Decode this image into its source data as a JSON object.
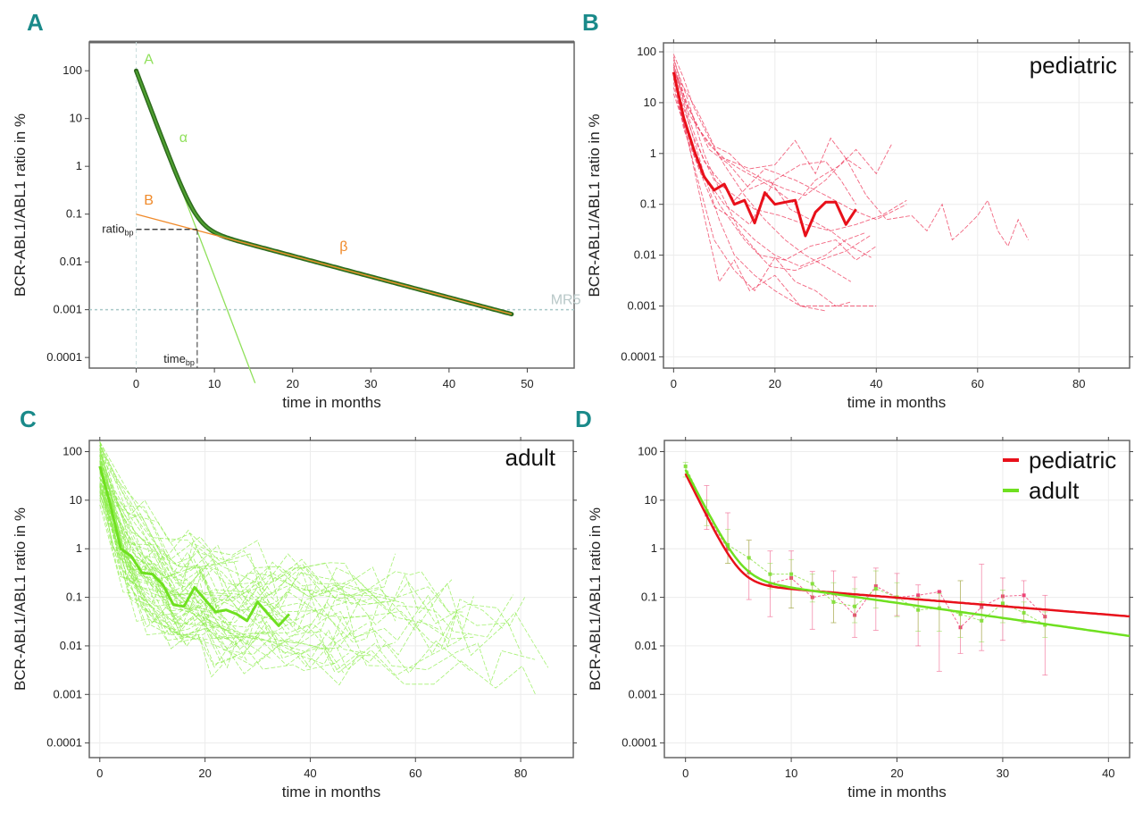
{
  "chart_data": [
    {
      "panel": "A",
      "type": "line",
      "title": "",
      "xlabel": "time in months",
      "ylabel": "BCR-ABL1/ABL1 ratio in %",
      "yscale": "log",
      "xlim": [
        -6,
        56
      ],
      "ylim": [
        6e-05,
        400
      ],
      "xticks": [
        0,
        10,
        20,
        30,
        40,
        50
      ],
      "yticks": [
        100,
        10,
        1,
        0.1,
        0.01,
        0.001,
        0.0001
      ],
      "ytick_labels": [
        "100",
        "10",
        "1",
        "0.1",
        "0.01",
        "0.001",
        "0.0001"
      ],
      "grid": false,
      "model": {
        "A": 100,
        "alpha_decades_per_month": -0.43,
        "B": 0.1,
        "beta_decades_per_month": -0.0436,
        "x_max": 48
      },
      "annotations": [
        {
          "text": "A",
          "x": 1,
          "y": 140,
          "color": "#8fe05a"
        },
        {
          "text": "α",
          "x": 5.5,
          "y": 3.2,
          "color": "#8fe05a"
        },
        {
          "text": "B",
          "x": 1,
          "y": 0.16,
          "color": "#f08a2a"
        },
        {
          "text": "β",
          "x": 26,
          "y": 0.017,
          "color": "#f08a2a"
        },
        {
          "text": "MR5",
          "x": 53,
          "y": 0.0013,
          "color": "#b8c8c8"
        }
      ],
      "ratio_bp_label": "ratio",
      "ratio_bp_sub": "bp",
      "time_bp_label": "time",
      "time_bp_sub": "bp",
      "breakpoint": {
        "x": 7.8,
        "y": 0.048
      },
      "mr5_level": 0.001
    },
    {
      "panel": "B",
      "type": "line",
      "inset_title": "pediatric",
      "xlabel": "time in months",
      "ylabel": "BCR-ABL1/ABL1 ratio in %",
      "yscale": "log",
      "xlim": [
        -2,
        90
      ],
      "ylim": [
        6e-05,
        150
      ],
      "xticks": [
        0,
        20,
        40,
        60,
        80
      ],
      "yticks": [
        100,
        10,
        1,
        0.1,
        0.01,
        0.001,
        0.0001
      ],
      "ytick_labels": [
        "100",
        "10",
        "1",
        "0.1",
        "0.01",
        "0.001",
        "0.0001"
      ],
      "grid": true,
      "color": "#ee3355",
      "median_color": "#e8101a",
      "median": {
        "x": [
          0,
          2,
          4,
          6,
          8,
          10,
          12,
          14,
          16,
          18,
          20,
          22,
          24,
          26,
          28,
          30,
          32,
          34,
          36
        ],
        "y": [
          40,
          5,
          1.2,
          0.35,
          0.19,
          0.25,
          0.1,
          0.12,
          0.043,
          0.17,
          0.1,
          0.11,
          0.12,
          0.024,
          0.07,
          0.11,
          0.11,
          0.04,
          0.08
        ]
      },
      "series": [
        {
          "x": [
            0,
            3,
            7,
            10,
            15,
            20,
            24,
            28,
            31,
            34,
            37
          ],
          "y": [
            80,
            6,
            1.5,
            0.8,
            0.5,
            0.6,
            1.8,
            0.4,
            2,
            0.8,
            0.5
          ]
        },
        {
          "x": [
            0,
            2,
            5,
            9,
            13,
            17,
            20,
            24,
            28,
            33,
            36,
            40,
            43
          ],
          "y": [
            60,
            12,
            3,
            0.9,
            0.5,
            0.3,
            0.2,
            0.1,
            0.3,
            0.6,
            1.2,
            0.4,
            1.5
          ]
        },
        {
          "x": [
            0,
            4,
            8,
            12,
            16,
            21,
            26,
            31,
            36,
            41,
            46
          ],
          "y": [
            30,
            2,
            0.3,
            0.15,
            0.08,
            0.06,
            0.04,
            0.03,
            0.04,
            0.06,
            0.12
          ]
        },
        {
          "x": [
            0,
            3,
            6,
            9,
            12,
            16,
            20,
            25,
            30,
            35,
            40
          ],
          "y": [
            50,
            4,
            0.4,
            0.05,
            0.01,
            0.004,
            0.002,
            0.001,
            0.001,
            0.001,
            0.001
          ]
        },
        {
          "x": [
            0,
            3,
            6,
            9,
            12,
            15,
            20,
            25,
            30
          ],
          "y": [
            20,
            1.5,
            0.06,
            0.003,
            0.008,
            0.002,
            0.004,
            0.001,
            0.0008
          ]
        },
        {
          "x": [
            0,
            2,
            5,
            8,
            11,
            14,
            18,
            22,
            26,
            30,
            34,
            38,
            42,
            47,
            50,
            53,
            55,
            57,
            60,
            62,
            64,
            66,
            68,
            70
          ],
          "y": [
            40,
            20,
            6,
            1.4,
            1,
            0.5,
            0.3,
            0.2,
            0.15,
            0.3,
            0.8,
            0.15,
            0.05,
            0.06,
            0.03,
            0.1,
            0.02,
            0.03,
            0.06,
            0.12,
            0.03,
            0.015,
            0.05,
            0.02
          ]
        },
        {
          "x": [
            0,
            3,
            6,
            9,
            13,
            17,
            22,
            27,
            32,
            36,
            40
          ],
          "y": [
            70,
            10,
            1,
            0.2,
            0.03,
            0.01,
            0.008,
            0.015,
            0.02,
            0.008,
            0.015
          ]
        },
        {
          "x": [
            0,
            2,
            5,
            8,
            12,
            16,
            20,
            25,
            30,
            34,
            38
          ],
          "y": [
            35,
            3,
            0.5,
            0.09,
            0.05,
            0.02,
            0.01,
            0.006,
            0.01,
            0.02,
            0.028
          ]
        },
        {
          "x": [
            0,
            4,
            8,
            12,
            16,
            20,
            24,
            28,
            32,
            35
          ],
          "y": [
            25,
            0.6,
            0.02,
            0.005,
            0.002,
            0.009,
            0.003,
            0.002,
            0.001,
            0.0012
          ]
        },
        {
          "x": [
            0,
            3,
            7,
            11,
            15,
            19,
            23,
            27,
            31,
            35,
            39
          ],
          "y": [
            45,
            8,
            1.2,
            0.6,
            0.2,
            0.3,
            0.08,
            0.05,
            0.03,
            0.015,
            0.009
          ]
        },
        {
          "x": [
            0,
            2,
            4,
            7,
            10,
            14,
            18,
            22,
            26,
            30,
            35
          ],
          "y": [
            90,
            30,
            8,
            2,
            0.6,
            0.15,
            0.05,
            0.02,
            0.01,
            0.006,
            0.003
          ]
        },
        {
          "x": [
            0,
            5,
            10,
            15,
            20,
            25,
            30,
            33,
            36
          ],
          "y": [
            15,
            0.5,
            0.1,
            0.04,
            0.3,
            0.6,
            0.7,
            0.3,
            0.1
          ]
        },
        {
          "x": [
            0,
            3,
            6,
            9,
            12,
            18,
            24,
            30,
            35,
            40,
            46
          ],
          "y": [
            55,
            5,
            0.7,
            0.3,
            0.12,
            0.5,
            0.3,
            0.15,
            0.08,
            0.05,
            0.1
          ]
        },
        {
          "x": [
            0,
            4,
            9,
            14,
            19,
            24,
            29,
            34,
            39
          ],
          "y": [
            30,
            1,
            0.1,
            0.02,
            0.006,
            0.005,
            0.008,
            0.012,
            0.025
          ]
        }
      ]
    },
    {
      "panel": "C",
      "type": "line",
      "inset_title": "adult",
      "xlabel": "time in months",
      "ylabel": "BCR-ABL1/ABL1 ratio in %",
      "yscale": "log",
      "xlim": [
        -2,
        90
      ],
      "ylim": [
        5e-05,
        170
      ],
      "xticks": [
        0,
        20,
        40,
        60,
        80
      ],
      "yticks": [
        100,
        10,
        1,
        0.1,
        0.01,
        0.001,
        0.0001
      ],
      "ytick_labels": [
        "100",
        "10",
        "1",
        "0.1",
        "0.01",
        "0.001",
        "0.0001"
      ],
      "grid": true,
      "color": "#90ee50",
      "median_color": "#6fe020",
      "median": {
        "x": [
          0,
          2,
          4,
          6,
          8,
          10,
          12,
          14,
          16,
          18,
          20,
          22,
          24,
          26,
          28,
          30,
          32,
          34,
          36
        ],
        "y": [
          50,
          8,
          1,
          0.7,
          0.32,
          0.3,
          0.18,
          0.07,
          0.065,
          0.16,
          0.09,
          0.05,
          0.055,
          0.045,
          0.033,
          0.08,
          0.045,
          0.026,
          0.045
        ]
      },
      "series_seed": 7,
      "series_count": 60
    },
    {
      "panel": "D",
      "type": "line",
      "xlabel": "time in months",
      "ylabel": "BCR-ABL1/ABL1 ratio in %",
      "yscale": "log",
      "xlim": [
        -2,
        42
      ],
      "ylim": [
        5e-05,
        170
      ],
      "xticks": [
        0,
        10,
        20,
        30,
        40
      ],
      "yticks": [
        100,
        10,
        1,
        0.1,
        0.01,
        0.001,
        0.0001
      ],
      "ytick_labels": [
        "100",
        "10",
        "1",
        "0.1",
        "0.01",
        "0.001",
        "0.0001"
      ],
      "grid": true,
      "legend": {
        "position": "top-right",
        "entries": [
          {
            "name": "pediatric",
            "color": "#e8101a"
          },
          {
            "name": "adult",
            "color": "#6fe020"
          }
        ]
      },
      "fits": [
        {
          "name": "pediatric",
          "color": "#e8101a",
          "A": 35,
          "alpha": -0.44,
          "B": 0.22,
          "beta": -0.0175
        },
        {
          "name": "adult",
          "color": "#6fe020",
          "A": 42,
          "alpha": -0.42,
          "B": 0.32,
          "beta": -0.031
        }
      ],
      "points": [
        {
          "name": "pediatric",
          "color": "#ee4477",
          "x": [
            2,
            4,
            6,
            8,
            10,
            12,
            14,
            16,
            18,
            20,
            22,
            24,
            26,
            28,
            30,
            32,
            34
          ],
          "y": [
            5,
            1,
            0.33,
            0.19,
            0.25,
            0.1,
            0.12,
            0.043,
            0.17,
            0.1,
            0.11,
            0.13,
            0.024,
            0.063,
            0.105,
            0.11,
            0.04
          ],
          "lo": [
            2.5,
            0.5,
            0.09,
            0.04,
            0.06,
            0.022,
            0.03,
            0.015,
            0.021,
            0.042,
            0.01,
            0.003,
            0.007,
            0.008,
            0.013,
            0.03,
            0.0025
          ],
          "hi": [
            20,
            5.5,
            1.5,
            0.9,
            0.9,
            0.34,
            0.35,
            0.26,
            0.4,
            0.31,
            0.18,
            0.13,
            0.22,
            0.48,
            0.25,
            0.22,
            0.11
          ]
        },
        {
          "name": "adult",
          "color": "#88e040",
          "x": [
            0,
            2,
            4,
            6,
            8,
            10,
            12,
            14,
            16,
            18,
            20,
            22,
            24,
            26,
            28,
            30,
            32,
            34
          ],
          "y": [
            50,
            6,
            1.2,
            0.65,
            0.3,
            0.3,
            0.19,
            0.08,
            0.065,
            0.15,
            0.1,
            0.055,
            0.06,
            0.045,
            0.033,
            0.075,
            0.048,
            0.027
          ],
          "lo": [
            30,
            3,
            0.5,
            0.3,
            0.15,
            0.06,
            0.08,
            0.03,
            0.03,
            0.06,
            0.04,
            0.02,
            0.02,
            0.015,
            0.012,
            0.03,
            0.03,
            0.015
          ],
          "hi": [
            60,
            10,
            2.5,
            1.5,
            0.5,
            0.6,
            0.3,
            0.2,
            0.15,
            0.35,
            0.2,
            0.1,
            0.12,
            0.22,
            0.08,
            0.14,
            0.08,
            0.05
          ]
        }
      ]
    }
  ],
  "panel_labels": [
    "A",
    "B",
    "C",
    "D"
  ]
}
